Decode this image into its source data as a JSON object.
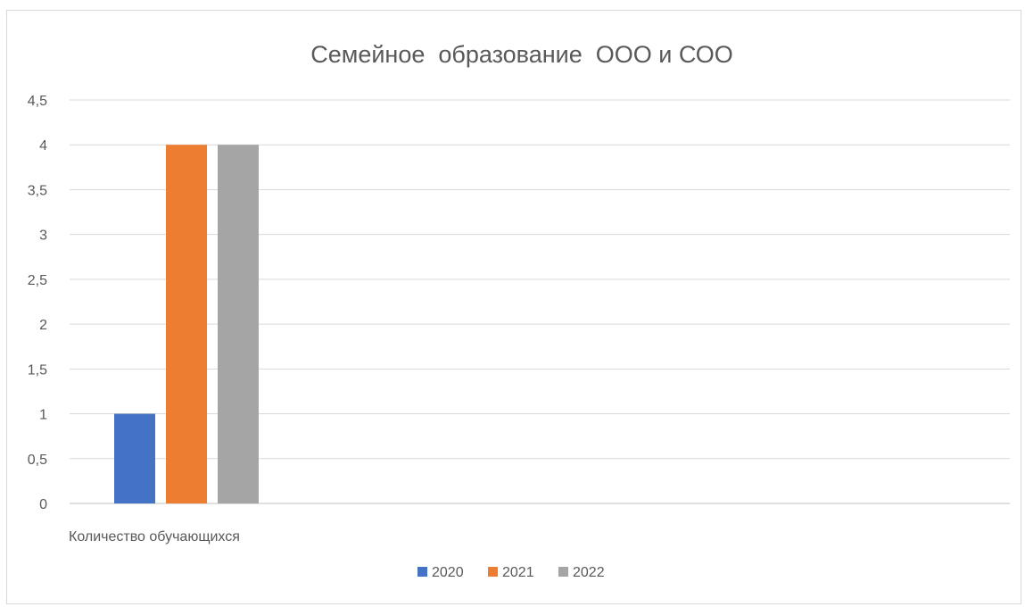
{
  "chart_data": {
    "type": "bar",
    "title": "Семейное  образование  ООО и СОО",
    "categories": [
      "Количество обучающихся"
    ],
    "series": [
      {
        "name": "2020",
        "values": [
          1
        ],
        "color": "#4472c4"
      },
      {
        "name": "2021",
        "values": [
          4
        ],
        "color": "#ed7d31"
      },
      {
        "name": "2022",
        "values": [
          4
        ],
        "color": "#a5a5a5"
      }
    ],
    "ylim": [
      0,
      4.5
    ],
    "yticks": [
      "0",
      "0,5",
      "1",
      "1,5",
      "2",
      "2,5",
      "3",
      "3,5",
      "4",
      "4,5"
    ],
    "grid": true,
    "legend_position": "bottom"
  }
}
